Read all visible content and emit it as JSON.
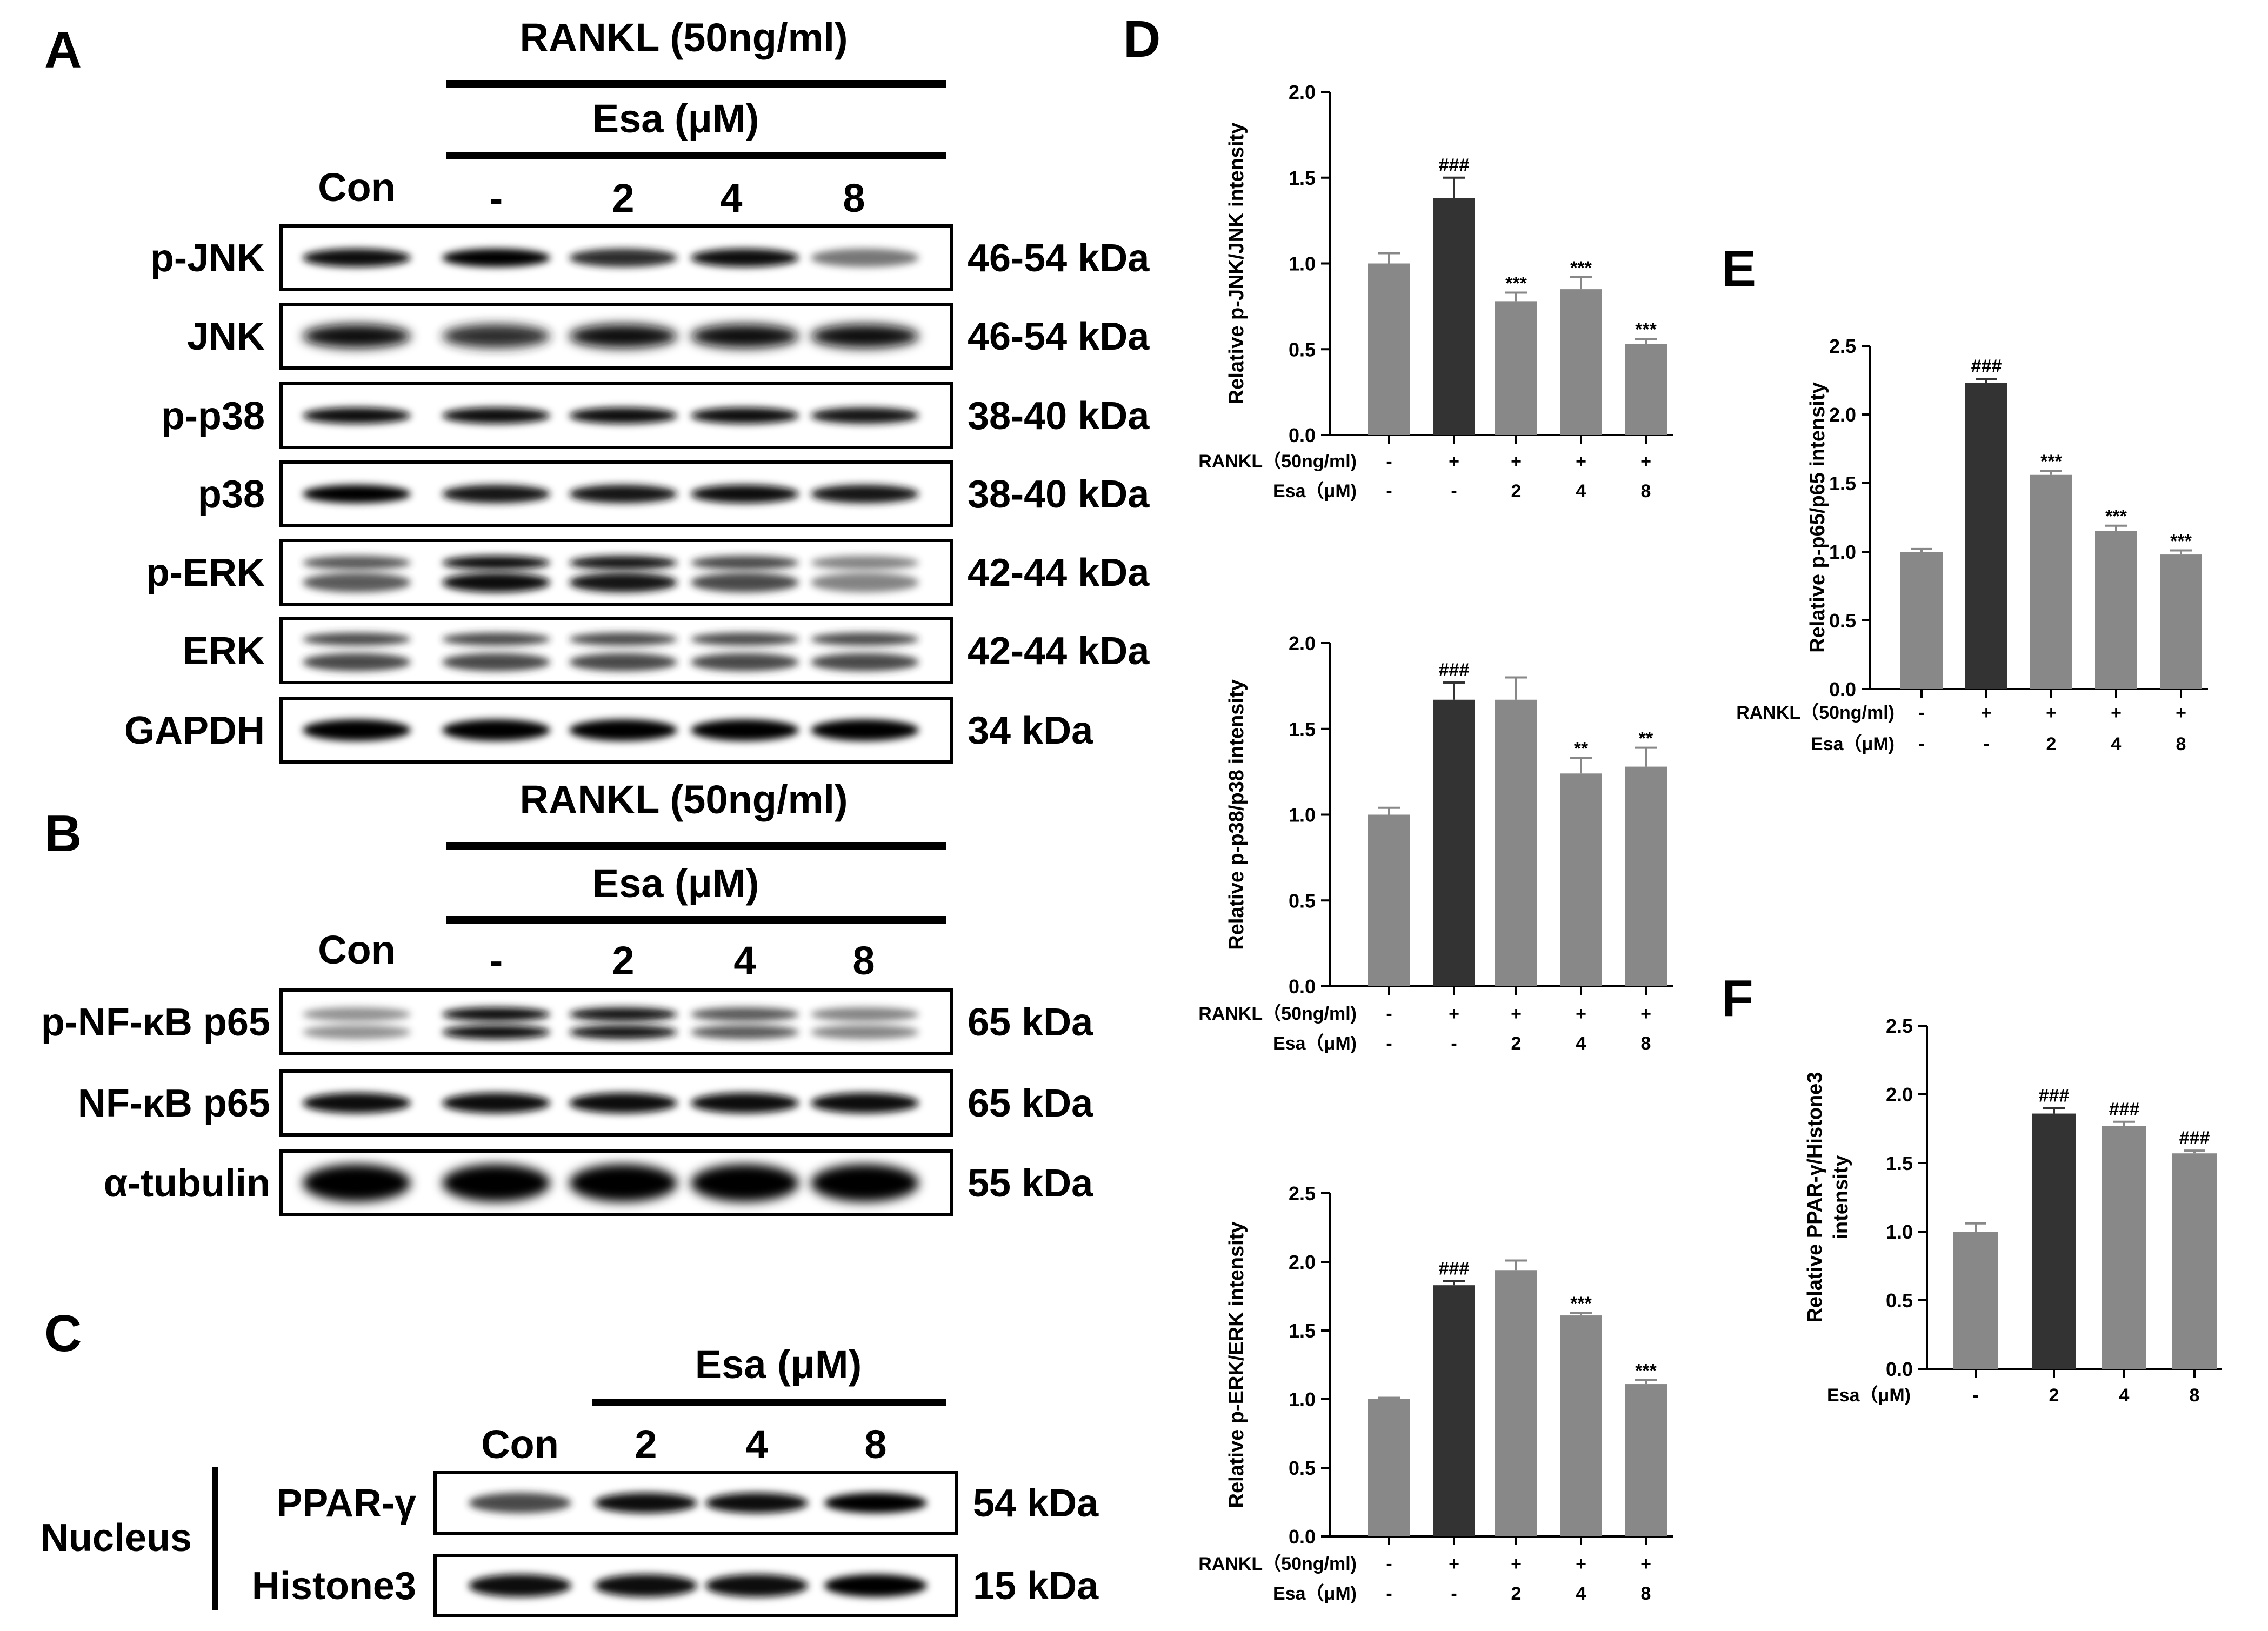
{
  "panels": {
    "A": "A",
    "B": "B",
    "C": "C",
    "D": "D",
    "E": "E",
    "F": "F"
  },
  "blot_A": {
    "rankl": "RANKL (50ng/ml)",
    "esa": "Esa (μM)",
    "lanes": [
      "Con",
      "-",
      "2",
      "4",
      "8"
    ],
    "rows": [
      {
        "protein": "p-JNK",
        "kda": "46-54 kDa"
      },
      {
        "protein": "JNK",
        "kda": "46-54 kDa"
      },
      {
        "protein": "p-p38",
        "kda": "38-40 kDa"
      },
      {
        "protein": "p38",
        "kda": "38-40 kDa"
      },
      {
        "protein": "p-ERK",
        "kda": "42-44 kDa"
      },
      {
        "protein": "ERK",
        "kda": "42-44 kDa"
      },
      {
        "protein": "GAPDH",
        "kda": "34 kDa"
      }
    ]
  },
  "blot_B": {
    "rankl": "RANKL (50ng/ml)",
    "esa": "Esa (μM)",
    "lanes": [
      "Con",
      "-",
      "2",
      "4",
      "8"
    ],
    "rows": [
      {
        "protein": "p-NF-κB p65",
        "kda": "65 kDa"
      },
      {
        "protein": "NF-κB p65",
        "kda": "65 kDa"
      },
      {
        "protein": "α-tubulin",
        "kda": "55 kDa"
      }
    ]
  },
  "blot_C": {
    "esa": "Esa (μM)",
    "lanes": [
      "Con",
      "2",
      "4",
      "8"
    ],
    "compartment": "Nucleus",
    "rows": [
      {
        "protein": "PPAR-γ",
        "kda": "54 kDa"
      },
      {
        "protein": "Histone3",
        "kda": "15 kDa"
      }
    ]
  },
  "chart_data": [
    {
      "type": "bar",
      "panel": "D",
      "ylabel": "Relative p-JNK/JNK intensity",
      "ylim": [
        0,
        2.0
      ],
      "yticks": [
        "0.0",
        "0.5",
        "1.0",
        "1.5",
        "2.0"
      ],
      "values": [
        1.0,
        1.38,
        0.78,
        0.85,
        0.53
      ],
      "errors": [
        0.06,
        0.12,
        0.05,
        0.07,
        0.03
      ],
      "significance": [
        "",
        "###",
        "***",
        "***",
        "***"
      ],
      "colors": [
        "#888888",
        "#333333",
        "#888888",
        "#888888",
        "#888888"
      ],
      "conditions": [
        {
          "label": "RANKL（50ng/ml)",
          "values": [
            "-",
            "+",
            "+",
            "+",
            "+"
          ]
        },
        {
          "label": "Esa（μM)",
          "values": [
            "-",
            "-",
            "2",
            "4",
            "8"
          ]
        }
      ]
    },
    {
      "type": "bar",
      "panel": "D",
      "ylabel": "Relative p-p38/p38 intensity",
      "ylim": [
        0,
        2.0
      ],
      "yticks": [
        "0.0",
        "0.5",
        "1.0",
        "1.5",
        "2.0"
      ],
      "values": [
        1.0,
        1.67,
        1.67,
        1.24,
        1.28
      ],
      "errors": [
        0.04,
        0.1,
        0.13,
        0.09,
        0.11
      ],
      "significance": [
        "",
        "###",
        "",
        "**",
        "**"
      ],
      "colors": [
        "#888888",
        "#333333",
        "#888888",
        "#888888",
        "#888888"
      ],
      "conditions": [
        {
          "label": "RANKL（50ng/ml)",
          "values": [
            "-",
            "+",
            "+",
            "+",
            "+"
          ]
        },
        {
          "label": "Esa（μM)",
          "values": [
            "-",
            "-",
            "2",
            "4",
            "8"
          ]
        }
      ]
    },
    {
      "type": "bar",
      "panel": "D",
      "ylabel": "Relative p-ERK/ERK intensity",
      "ylim": [
        0,
        2.5
      ],
      "yticks": [
        "0.0",
        "0.5",
        "1.0",
        "1.5",
        "2.0",
        "2.5"
      ],
      "values": [
        1.0,
        1.83,
        1.94,
        1.61,
        1.11
      ],
      "errors": [
        0.01,
        0.03,
        0.07,
        0.02,
        0.03
      ],
      "significance": [
        "",
        "###",
        "",
        "***",
        "***"
      ],
      "colors": [
        "#888888",
        "#333333",
        "#888888",
        "#888888",
        "#888888"
      ],
      "conditions": [
        {
          "label": "RANKL（50ng/ml)",
          "values": [
            "-",
            "+",
            "+",
            "+",
            "+"
          ]
        },
        {
          "label": "Esa（μM)",
          "values": [
            "-",
            "-",
            "2",
            "4",
            "8"
          ]
        }
      ]
    },
    {
      "type": "bar",
      "panel": "E",
      "ylabel": "Relative p-p65/p65 intensity",
      "ylim": [
        0,
        2.5
      ],
      "yticks": [
        "0.0",
        "0.5",
        "1.0",
        "1.5",
        "2.0",
        "2.5"
      ],
      "values": [
        1.0,
        2.23,
        1.56,
        1.15,
        0.98
      ],
      "errors": [
        0.02,
        0.03,
        0.03,
        0.04,
        0.03
      ],
      "significance": [
        "",
        "###",
        "***",
        "***",
        "***"
      ],
      "colors": [
        "#888888",
        "#333333",
        "#888888",
        "#888888",
        "#888888"
      ],
      "conditions": [
        {
          "label": "RANKL（50ng/ml)",
          "values": [
            "-",
            "+",
            "+",
            "+",
            "+"
          ]
        },
        {
          "label": "Esa（μM)",
          "values": [
            "-",
            "-",
            "2",
            "4",
            "8"
          ]
        }
      ]
    },
    {
      "type": "bar",
      "panel": "F",
      "ylabel_lines": [
        "Relative PPAR-γ/Histone3",
        "intensity"
      ],
      "ylim": [
        0,
        2.5
      ],
      "yticks": [
        "0.0",
        "0.5",
        "1.0",
        "1.5",
        "2.0",
        "2.5"
      ],
      "values": [
        1.0,
        1.86,
        1.77,
        1.57
      ],
      "errors": [
        0.06,
        0.04,
        0.03,
        0.02
      ],
      "significance": [
        "",
        "###",
        "###",
        "###"
      ],
      "colors": [
        "#888888",
        "#333333",
        "#888888",
        "#888888"
      ],
      "conditions": [
        {
          "label": "Esa（μM)",
          "values": [
            "-",
            "2",
            "4",
            "8"
          ]
        }
      ]
    }
  ]
}
